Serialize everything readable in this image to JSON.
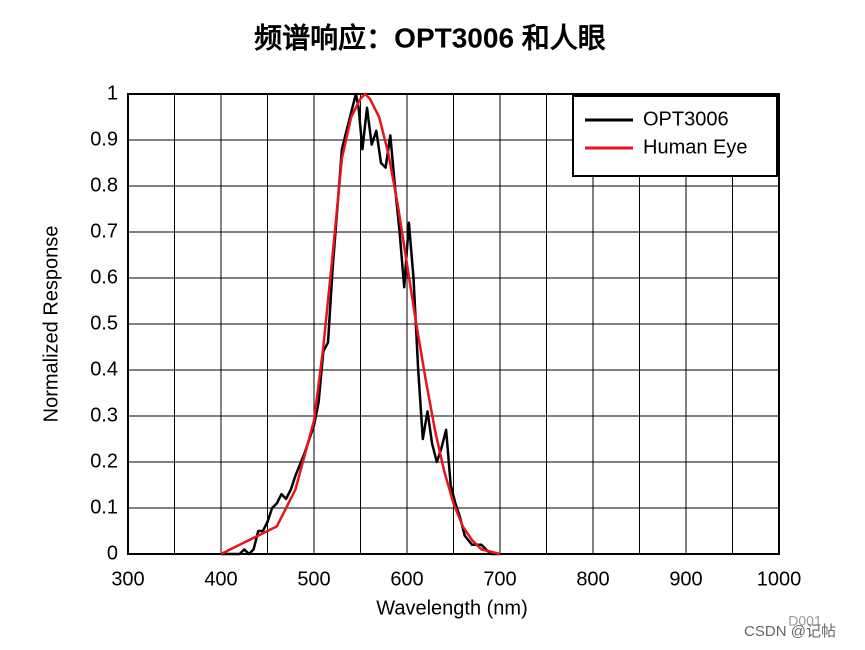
{
  "chart_data": {
    "type": "line",
    "title": "频谱响应：OPT3006 和人眼",
    "x_label": "Wavelength (nm)",
    "y_label": "Normalized Response",
    "annotations": [
      "D001",
      "CSDN @记帖"
    ],
    "xlim": [
      300,
      1000
    ],
    "xticks": [
      300,
      400,
      500,
      600,
      700,
      800,
      900,
      1000
    ],
    "xminorticks": [
      350,
      450,
      550,
      650,
      750,
      850,
      950
    ],
    "ylim": [
      0,
      1
    ],
    "yticks": [
      0,
      0.1,
      0.2,
      0.3,
      0.4,
      0.5,
      0.6,
      0.7,
      0.8,
      0.9,
      1
    ],
    "grid": true,
    "legend": "upper right",
    "series": [
      {
        "name": "OPT3006",
        "color": "#000000",
        "x": [
          400,
          420,
          425,
          430,
          435,
          440,
          445,
          450,
          455,
          460,
          465,
          470,
          475,
          480,
          490,
          500,
          505,
          510,
          515,
          520,
          525,
          530,
          535,
          540,
          545,
          548,
          552,
          557,
          562,
          567,
          572,
          577,
          582,
          587,
          592,
          597,
          602,
          607,
          612,
          617,
          622,
          627,
          632,
          637,
          642,
          647,
          652,
          657,
          662,
          670,
          680,
          690,
          700
        ],
        "values": [
          0,
          0,
          0.01,
          0,
          0.01,
          0.05,
          0.05,
          0.07,
          0.1,
          0.11,
          0.13,
          0.12,
          0.14,
          0.17,
          0.22,
          0.28,
          0.33,
          0.44,
          0.46,
          0.62,
          0.75,
          0.88,
          0.92,
          0.96,
          1.0,
          0.97,
          0.88,
          0.97,
          0.89,
          0.92,
          0.85,
          0.84,
          0.91,
          0.8,
          0.7,
          0.58,
          0.72,
          0.6,
          0.4,
          0.25,
          0.31,
          0.24,
          0.2,
          0.23,
          0.27,
          0.15,
          0.11,
          0.08,
          0.04,
          0.02,
          0.02,
          0,
          0
        ]
      },
      {
        "name": "Human Eye",
        "color": "#e8141b",
        "x": [
          400,
          420,
          440,
          460,
          480,
          500,
          510,
          520,
          530,
          540,
          550,
          555,
          560,
          570,
          580,
          590,
          600,
          610,
          620,
          630,
          640,
          650,
          660,
          670,
          680,
          700
        ],
        "values": [
          0,
          0.02,
          0.04,
          0.06,
          0.14,
          0.29,
          0.45,
          0.65,
          0.86,
          0.95,
          0.99,
          1.0,
          0.99,
          0.95,
          0.87,
          0.76,
          0.63,
          0.5,
          0.38,
          0.27,
          0.18,
          0.11,
          0.06,
          0.03,
          0.01,
          0
        ]
      }
    ]
  }
}
